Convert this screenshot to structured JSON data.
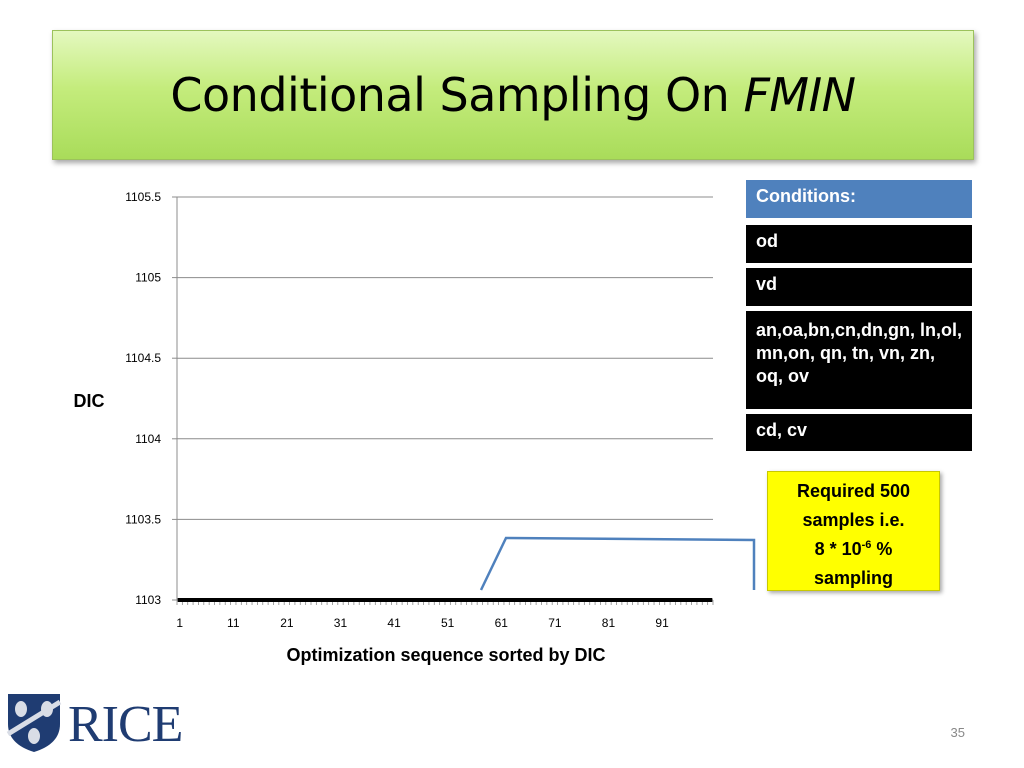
{
  "slide": {
    "title_main": "Conditional Sampling On ",
    "title_italic": "FMIN",
    "page_number": "35"
  },
  "conditions": {
    "header": "Conditions:",
    "items": [
      "od",
      "vd",
      "an,oa,bn,cn,dn,gn, ln,ol, mn,on, qn, tn, vn, zn, oq, ov",
      "cd, cv"
    ]
  },
  "callout": {
    "line1": "Required  500",
    "line2": "samples i.e.",
    "line3_pre": "8 * 10",
    "line3_sup": "-6",
    "line3_post": " %",
    "line4": "sampling"
  },
  "logo": {
    "text": "RICE"
  },
  "colors": {
    "title_gradient_top": "#e4f8bf",
    "title_gradient_bottom": "#a9dc5a",
    "conditions_header": "#4f81bd",
    "conditions_item": "#000000",
    "callout_fill": "#ffff00",
    "pointer_line": "#4f81bd",
    "series_line": "#000000",
    "logo": "#1f3c72"
  },
  "chart_data": {
    "type": "line",
    "xlabel": "Optimization sequence sorted by DIC",
    "ylabel": "DIC",
    "ylim": [
      1103,
      1105.5
    ],
    "yticks": [
      "1105.5",
      "1105",
      "1104.5",
      "1104",
      "1103.5",
      "1103"
    ],
    "xticks": [
      "1",
      "11",
      "21",
      "31",
      "41",
      "51",
      "61",
      "71",
      "81",
      "91"
    ],
    "xlim": [
      1,
      100
    ],
    "grid": true,
    "series": [
      {
        "x_start": 1,
        "x_end": 100,
        "value": 1103
      }
    ]
  }
}
